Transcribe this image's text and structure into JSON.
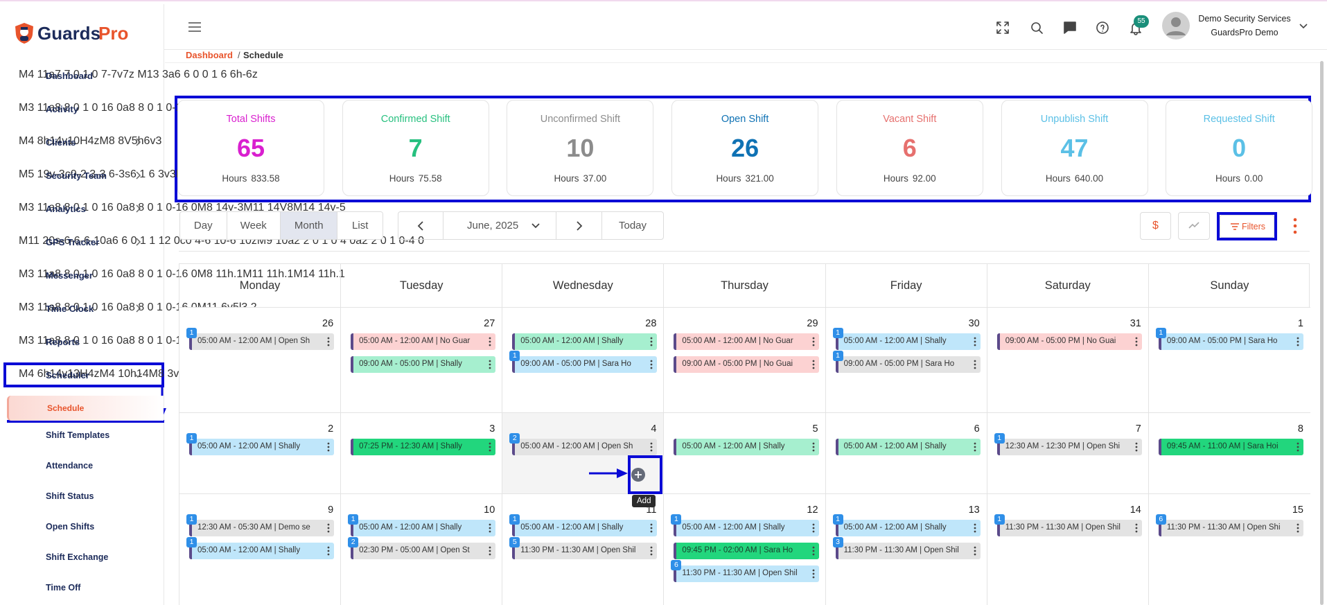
{
  "brand": {
    "first": "Guards",
    "second": "Pro"
  },
  "sidebar": {
    "items": [
      {
        "label": "Dashboard"
      },
      {
        "label": "Activity"
      },
      {
        "label": "Clients",
        "chevron": "right"
      },
      {
        "label": "Security Team",
        "chevron": "right"
      },
      {
        "label": "Analytics",
        "chevron": "right"
      },
      {
        "label": "GPS Tracker",
        "chevron": "right"
      },
      {
        "label": "Messenger"
      },
      {
        "label": "Time Clock",
        "chevron": "right"
      },
      {
        "label": "Reports"
      },
      {
        "label": "Scheduler",
        "chevron": "down"
      }
    ],
    "subitems": [
      "Schedule",
      "Shift Templates",
      "Attendance",
      "Shift Status",
      "Open Shifts",
      "Shift Exchange",
      "Time Off"
    ]
  },
  "header": {
    "notifications": 55,
    "user_name": "Demo Security Services",
    "company": "GuardsPro Demo"
  },
  "breadcrumb": {
    "parent": "Dashboard",
    "separator": "/",
    "current": "Schedule"
  },
  "stats": [
    {
      "title": "Total Shifts",
      "value": 65,
      "hours_label": "Hours",
      "hours": "833.58",
      "color": "#d91fcf"
    },
    {
      "title": "Confirmed Shift",
      "value": 7,
      "hours_label": "Hours",
      "hours": "75.58",
      "color": "#27c07f"
    },
    {
      "title": "Unconfirmed Shift",
      "value": 10,
      "hours_label": "Hours",
      "hours": "37.00",
      "color": "#8c8c8c"
    },
    {
      "title": "Open Shift",
      "value": 26,
      "hours_label": "Hours",
      "hours": "321.00",
      "color": "#0f72b4"
    },
    {
      "title": "Vacant Shift",
      "value": 6,
      "hours_label": "Hours",
      "hours": "92.00",
      "color": "#e6706e"
    },
    {
      "title": "Unpublish Shift",
      "value": 47,
      "hours_label": "Hours",
      "hours": "640.00",
      "color": "#5bc0e6"
    },
    {
      "title": "Requested Shift",
      "value": 0,
      "hours_label": "Hours",
      "hours": "0.00",
      "color": "#5bc0e6"
    }
  ],
  "toolbar": {
    "views": [
      "Day",
      "Week",
      "Month",
      "List"
    ],
    "period": "June, 2025",
    "today": "Today",
    "currency": "$",
    "filters": "Filters"
  },
  "calendar": {
    "weekdays": [
      "Monday",
      "Tuesday",
      "Wednesday",
      "Thursday",
      "Friday",
      "Saturday",
      "Sunday"
    ],
    "weeks": [
      [
        {
          "date": 26,
          "events": [
            {
              "badge": 1,
              "text": "05:00 AM - 12:00 AM | Open Sh",
              "color": "#e3e3e3"
            }
          ]
        },
        {
          "date": 27,
          "events": [
            {
              "text": "05:00 AM - 12:00 AM | No Guar",
              "color": "#fcd2d2"
            },
            {
              "text": "09:00 AM - 05:00 PM | Shally",
              "color": "#a6efcf"
            }
          ]
        },
        {
          "date": 28,
          "events": [
            {
              "text": "05:00 AM - 12:00 AM | Shally",
              "color": "#a6efcf"
            },
            {
              "badge": 1,
              "text": "09:00 AM - 05:00 PM | Sara Ho",
              "color": "#bfe6fa"
            }
          ]
        },
        {
          "date": 29,
          "events": [
            {
              "text": "05:00 AM - 12:00 AM | No Guar",
              "color": "#fcd2d2"
            },
            {
              "text": "09:00 AM - 05:00 PM | No Guai",
              "color": "#fcd2d2"
            }
          ]
        },
        {
          "date": 30,
          "events": [
            {
              "badge": 1,
              "text": "05:00 AM - 12:00 AM | Shally",
              "color": "#bfe6fa"
            },
            {
              "badge": 1,
              "text": "09:00 AM - 05:00 PM | Sara Ho",
              "color": "#e3e3e3"
            }
          ]
        },
        {
          "date": 31,
          "events": [
            {
              "text": "09:00 AM - 05:00 PM | No Guai",
              "color": "#fcd2d2"
            }
          ]
        },
        {
          "date": 1,
          "events": [
            {
              "badge": 1,
              "text": "09:00 AM - 05:00 PM | Sara Ho",
              "color": "#bfe6fa"
            }
          ]
        }
      ],
      [
        {
          "date": 2,
          "events": [
            {
              "badge": 1,
              "text": "05:00 AM - 12:00 AM | Shally",
              "color": "#bfe6fa"
            }
          ]
        },
        {
          "date": 3,
          "events": [
            {
              "text": "07:25 PM - 12:30 AM | Shally",
              "color": "#22d67d"
            }
          ]
        },
        {
          "date": 4,
          "events": [
            {
              "badge": 2,
              "text": "05:00 AM - 12:00 AM | Open Sh",
              "color": "#e3e3e3"
            }
          ]
        },
        {
          "date": 5,
          "events": [
            {
              "text": "05:00 AM - 12:00 AM | Shally",
              "color": "#a6efcf"
            }
          ]
        },
        {
          "date": 6,
          "events": [
            {
              "text": "05:00 AM - 12:00 AM | Shally",
              "color": "#a6efcf"
            }
          ]
        },
        {
          "date": 7,
          "events": [
            {
              "badge": 1,
              "text": "12:30 AM - 12:30 PM | Open Shi",
              "color": "#e3e3e3"
            }
          ]
        },
        {
          "date": 8,
          "events": [
            {
              "text": "09:45 AM - 11:00 AM | Sara Hoi",
              "color": "#22d67d"
            }
          ]
        }
      ],
      [
        {
          "date": 9,
          "events": [
            {
              "badge": 1,
              "text": "12:30 AM - 05:30 AM | Demo se",
              "color": "#e3e3e3"
            },
            {
              "badge": 1,
              "text": "05:00 AM - 12:00 AM | Shally",
              "color": "#bfe6fa"
            }
          ]
        },
        {
          "date": 10,
          "events": [
            {
              "badge": 1,
              "text": "05:00 AM - 12:00 AM | Shally",
              "color": "#bfe6fa"
            },
            {
              "badge": 2,
              "text": "02:30 PM - 05:00 AM | Open St",
              "color": "#e3e3e3"
            }
          ]
        },
        {
          "date": 11,
          "events": [
            {
              "badge": 1,
              "text": "05:00 AM - 12:00 AM | Shally",
              "color": "#bfe6fa"
            },
            {
              "badge": 5,
              "text": "11:30 PM - 11:30 AM | Open Shil",
              "color": "#e3e3e3"
            }
          ]
        },
        {
          "date": 12,
          "events": [
            {
              "badge": 1,
              "text": "05:00 AM - 12:00 AM | Shally",
              "color": "#bfe6fa"
            },
            {
              "text": "09:45 PM - 02:00 AM | Sara Ho",
              "color": "#22d67d"
            },
            {
              "badge": 6,
              "text": "11:30 PM - 11:30 AM | Open Shil",
              "color": "#bfe6fa"
            }
          ]
        },
        {
          "date": 13,
          "events": [
            {
              "badge": 1,
              "text": "05:00 AM - 12:00 AM | Shally",
              "color": "#bfe6fa"
            },
            {
              "badge": 3,
              "text": "11:30 PM - 11:30 AM | Open Shil",
              "color": "#e3e3e3"
            }
          ]
        },
        {
          "date": 14,
          "events": [
            {
              "badge": 1,
              "text": "11:30 PM - 11:30 AM | Open Shil",
              "color": "#e3e3e3"
            }
          ]
        },
        {
          "date": 15,
          "events": [
            {
              "badge": 6,
              "text": "11:30 PM - 11:30 AM | Open Shi",
              "color": "#e3e3e3"
            }
          ]
        }
      ]
    ]
  },
  "tooltip": "Add"
}
